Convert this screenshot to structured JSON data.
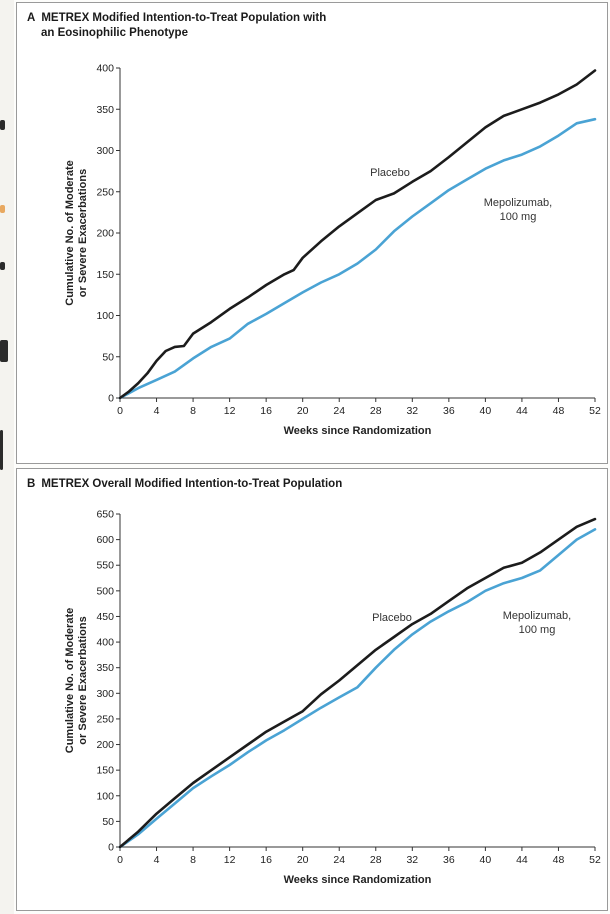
{
  "chart_data": [
    {
      "type": "line",
      "panel_letter": "A",
      "title": "METREX Modified Intention-to-Treat Population with",
      "subtitle": "an Eosinophilic Phenotype",
      "xlabel": "Weeks since Randomization",
      "ylabel": [
        "Cumulative No. of Moderate",
        "or Severe Exacerbations"
      ],
      "xlim": [
        0,
        52
      ],
      "ylim": [
        0,
        400
      ],
      "xticks": [
        0,
        4,
        8,
        12,
        16,
        20,
        24,
        28,
        32,
        36,
        40,
        44,
        48,
        52
      ],
      "yticks": [
        0,
        50,
        100,
        150,
        200,
        250,
        300,
        350,
        400
      ],
      "grid": false,
      "series": [
        {
          "name": "Placebo",
          "label_lines": [
            "Placebo"
          ],
          "color": "#1c1c1c",
          "x": [
            0,
            1,
            2,
            3,
            4,
            5,
            6,
            7,
            8,
            10,
            12,
            14,
            16,
            18,
            19,
            20,
            22,
            24,
            26,
            28,
            30,
            32,
            34,
            36,
            38,
            40,
            42,
            44,
            46,
            48,
            50,
            52
          ],
          "y": [
            0,
            8,
            18,
            30,
            45,
            57,
            62,
            63,
            78,
            92,
            108,
            122,
            137,
            150,
            155,
            170,
            190,
            208,
            224,
            240,
            248,
            262,
            275,
            292,
            310,
            328,
            342,
            350,
            358,
            368,
            380,
            397
          ]
        },
        {
          "name": "Mepolizumab, 100 mg",
          "label_lines": [
            "Mepolizumab,",
            "100 mg"
          ],
          "color": "#4aa3d4",
          "x": [
            0,
            2,
            4,
            6,
            8,
            10,
            12,
            14,
            16,
            18,
            20,
            22,
            24,
            26,
            28,
            30,
            32,
            34,
            36,
            38,
            40,
            42,
            44,
            46,
            48,
            50,
            52
          ],
          "y": [
            0,
            12,
            22,
            32,
            48,
            62,
            72,
            90,
            102,
            115,
            128,
            140,
            150,
            163,
            180,
            202,
            220,
            236,
            252,
            265,
            278,
            288,
            295,
            305,
            318,
            333,
            338
          ]
        }
      ]
    },
    {
      "type": "line",
      "panel_letter": "B",
      "title": "METREX Overall Modified Intention-to-Treat Population",
      "subtitle": "",
      "xlabel": "Weeks since Randomization",
      "ylabel": [
        "Cumulative No. of Moderate",
        "or Severe Exacerbations"
      ],
      "xlim": [
        0,
        52
      ],
      "ylim": [
        0,
        650
      ],
      "xticks": [
        0,
        4,
        8,
        12,
        16,
        20,
        24,
        28,
        32,
        36,
        40,
        44,
        48,
        52
      ],
      "yticks": [
        0,
        50,
        100,
        150,
        200,
        250,
        300,
        350,
        400,
        450,
        500,
        550,
        600,
        650
      ],
      "grid": false,
      "series": [
        {
          "name": "Placebo",
          "label_lines": [
            "Placebo"
          ],
          "color": "#1c1c1c",
          "x": [
            0,
            2,
            4,
            6,
            8,
            10,
            12,
            14,
            16,
            18,
            20,
            22,
            24,
            26,
            28,
            30,
            32,
            34,
            36,
            38,
            40,
            42,
            44,
            46,
            48,
            50,
            52
          ],
          "y": [
            0,
            30,
            65,
            95,
            125,
            150,
            175,
            200,
            225,
            245,
            265,
            298,
            325,
            355,
            385,
            410,
            435,
            455,
            480,
            505,
            525,
            545,
            555,
            575,
            600,
            625,
            640
          ]
        },
        {
          "name": "Mepolizumab, 100 mg",
          "label_lines": [
            "Mepolizumab,",
            "100 mg"
          ],
          "color": "#4aa3d4",
          "x": [
            0,
            2,
            4,
            6,
            8,
            10,
            12,
            14,
            16,
            18,
            20,
            22,
            24,
            26,
            28,
            30,
            32,
            34,
            36,
            38,
            40,
            42,
            44,
            46,
            48,
            50,
            52
          ],
          "y": [
            0,
            25,
            55,
            85,
            115,
            138,
            160,
            185,
            208,
            228,
            250,
            272,
            292,
            312,
            350,
            385,
            415,
            440,
            460,
            478,
            500,
            515,
            525,
            540,
            570,
            600,
            620
          ]
        }
      ]
    }
  ]
}
